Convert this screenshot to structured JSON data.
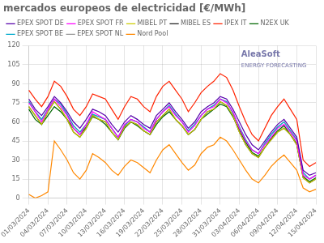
{
  "chart_data": {
    "type": "line",
    "title": "mercados europeos de electricidad [€/MWh]",
    "categories": [
      "01/03/2024",
      null,
      null,
      "04/03/2024",
      null,
      null,
      "07/03/2024",
      null,
      null,
      "10/03/2024",
      null,
      null,
      "13/03/2024",
      null,
      null,
      "16/03/2024",
      null,
      null,
      "19/03/2024",
      null,
      null,
      "22/03/2024",
      null,
      null,
      "25/03/2024",
      null,
      null,
      "28/03/2024",
      null,
      null,
      "31/03/2024",
      null,
      null,
      "03/04/2024",
      null,
      null,
      "06/04/2024",
      null,
      null,
      "09/04/2024",
      null,
      null,
      "12/04/2024",
      null,
      null,
      "15/04/2024"
    ],
    "series": [
      {
        "name": "EPEX SPOT DE",
        "color": "#5500aa",
        "values": [
          78,
          70,
          65,
          72,
          80,
          75,
          68,
          60,
          55,
          62,
          70,
          68,
          65,
          58,
          52,
          60,
          65,
          62,
          58,
          55,
          65,
          70,
          75,
          68,
          62,
          55,
          60,
          68,
          72,
          75,
          80,
          78,
          70,
          60,
          50,
          42,
          38,
          45,
          52,
          58,
          62,
          55,
          48,
          22,
          18,
          20
        ]
      },
      {
        "name": "EPEX SPOT FR",
        "color": "#ff00ff",
        "values": [
          75,
          68,
          60,
          70,
          78,
          72,
          65,
          55,
          50,
          58,
          68,
          65,
          62,
          55,
          48,
          58,
          62,
          60,
          55,
          52,
          62,
          68,
          72,
          65,
          60,
          52,
          57,
          65,
          70,
          72,
          78,
          75,
          68,
          55,
          45,
          38,
          35,
          42,
          48,
          55,
          58,
          52,
          45,
          18,
          15,
          18
        ]
      },
      {
        "name": "MIBEL PT",
        "color": "#cccc00",
        "values": [
          72,
          65,
          58,
          68,
          76,
          70,
          62,
          52,
          48,
          55,
          65,
          62,
          60,
          52,
          46,
          56,
          60,
          58,
          53,
          50,
          60,
          65,
          70,
          62,
          57,
          50,
          54,
          62,
          68,
          70,
          76,
          73,
          65,
          52,
          42,
          35,
          32,
          40,
          46,
          52,
          55,
          50,
          42,
          16,
          12,
          15
        ]
      },
      {
        "name": "MIBEL ES",
        "color": "#222222",
        "values": [
          72,
          65,
          58,
          68,
          76,
          70,
          62,
          52,
          48,
          55,
          65,
          62,
          60,
          52,
          46,
          56,
          60,
          58,
          53,
          50,
          60,
          65,
          70,
          62,
          57,
          50,
          54,
          62,
          68,
          70,
          76,
          73,
          65,
          52,
          42,
          35,
          32,
          40,
          46,
          52,
          55,
          50,
          42,
          16,
          12,
          15
        ]
      },
      {
        "name": "IPEX IT",
        "color": "#ff2200",
        "values": [
          85,
          78,
          72,
          80,
          92,
          88,
          80,
          70,
          65,
          72,
          82,
          80,
          78,
          70,
          62,
          72,
          80,
          78,
          72,
          68,
          80,
          88,
          92,
          85,
          78,
          68,
          75,
          83,
          88,
          92,
          98,
          95,
          85,
          72,
          60,
          50,
          45,
          55,
          65,
          72,
          78,
          70,
          62,
          30,
          25,
          28
        ]
      },
      {
        "name": "N2EX UK",
        "color": "#006600",
        "values": [
          70,
          62,
          58,
          65,
          72,
          68,
          62,
          55,
          50,
          56,
          64,
          62,
          58,
          52,
          46,
          55,
          60,
          57,
          53,
          50,
          58,
          64,
          68,
          62,
          57,
          50,
          54,
          62,
          66,
          70,
          74,
          72,
          64,
          54,
          44,
          36,
          33,
          40,
          47,
          53,
          57,
          50,
          43,
          17,
          13,
          16
        ]
      },
      {
        "name": "EPEX SPOT BE",
        "color": "#00aacc",
        "values": [
          76,
          68,
          62,
          70,
          78,
          74,
          66,
          57,
          52,
          58,
          66,
          64,
          62,
          55,
          48,
          57,
          62,
          60,
          56,
          52,
          62,
          68,
          73,
          66,
          60,
          53,
          58,
          65,
          70,
          73,
          78,
          76,
          67,
          56,
          46,
          38,
          35,
          43,
          50,
          56,
          60,
          53,
          46,
          20,
          15,
          18
        ]
      },
      {
        "name": "EPEX SPOT NL",
        "color": "#999999",
        "values": [
          76,
          68,
          62,
          70,
          78,
          74,
          66,
          57,
          52,
          58,
          66,
          64,
          62,
          55,
          48,
          57,
          62,
          60,
          56,
          52,
          62,
          68,
          73,
          66,
          60,
          53,
          58,
          65,
          70,
          73,
          78,
          76,
          67,
          56,
          46,
          38,
          35,
          43,
          50,
          56,
          60,
          53,
          46,
          20,
          15,
          18
        ]
      },
      {
        "name": "Nord Pool",
        "color": "#ff8800",
        "values": [
          3,
          0,
          2,
          5,
          45,
          38,
          30,
          20,
          15,
          22,
          35,
          32,
          28,
          22,
          18,
          25,
          30,
          28,
          24,
          20,
          30,
          38,
          42,
          35,
          28,
          22,
          26,
          35,
          40,
          42,
          48,
          45,
          38,
          30,
          22,
          15,
          12,
          18,
          25,
          30,
          34,
          28,
          22,
          8,
          5,
          7
        ]
      }
    ],
    "ylim": [
      0,
      120
    ],
    "yticks": [
      0,
      15,
      30,
      45,
      60,
      75,
      90,
      105,
      120
    ],
    "grid": true,
    "legend": "top",
    "annotations": [
      "AleaSoft",
      "ENERGY FORECASTING"
    ]
  }
}
